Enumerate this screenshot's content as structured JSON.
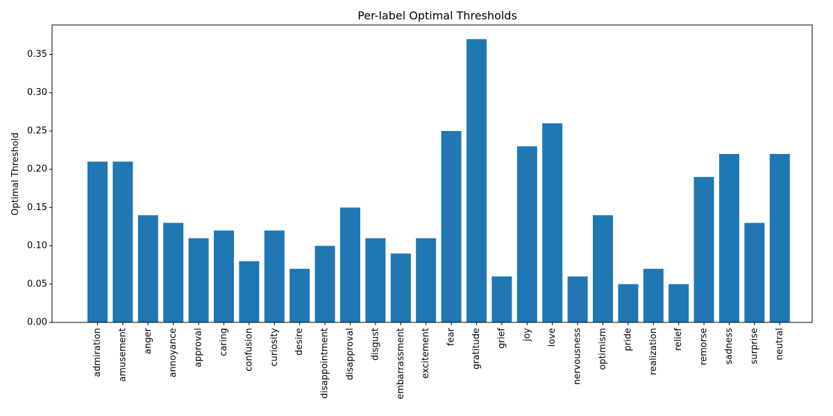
{
  "chart_data": {
    "type": "bar",
    "title": "Per-label Optimal Thresholds",
    "xlabel": "",
    "ylabel": "Optimal Threshold",
    "ylim": [
      0,
      0.3885
    ],
    "yticks": [
      "0.00",
      "0.05",
      "0.10",
      "0.15",
      "0.20",
      "0.25",
      "0.30",
      "0.35"
    ],
    "grid": false,
    "categories": [
      "admiration",
      "amusement",
      "anger",
      "annoyance",
      "approval",
      "caring",
      "confusion",
      "curiosity",
      "desire",
      "disappointment",
      "disapproval",
      "disgust",
      "embarrassment",
      "excitement",
      "fear",
      "gratitude",
      "grief",
      "joy",
      "love",
      "nervousness",
      "optimism",
      "pride",
      "realization",
      "relief",
      "remorse",
      "sadness",
      "surprise",
      "neutral"
    ],
    "values": [
      0.21,
      0.21,
      0.14,
      0.13,
      0.11,
      0.12,
      0.08,
      0.12,
      0.07,
      0.1,
      0.15,
      0.11,
      0.09,
      0.11,
      0.25,
      0.37,
      0.06,
      0.23,
      0.26,
      0.06,
      0.14,
      0.05,
      0.07,
      0.05,
      0.19,
      0.22,
      0.13,
      0.22
    ],
    "color": "#1f77b4"
  }
}
